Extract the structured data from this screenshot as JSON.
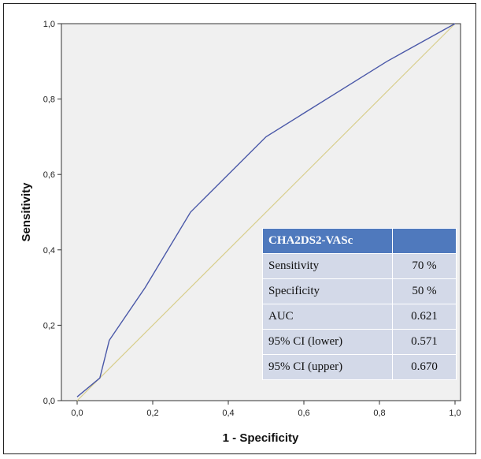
{
  "chart_data": {
    "type": "line",
    "xlabel": "1 - Specificity",
    "ylabel": "Sensitivity",
    "xlim": [
      0,
      1
    ],
    "ylim": [
      0,
      1
    ],
    "xticks": [
      "0,0",
      "0,2",
      "0,4",
      "0,6",
      "0,8",
      "1,0"
    ],
    "yticks": [
      "0,0",
      "0,2",
      "0,4",
      "0,6",
      "0,8",
      "1,0"
    ],
    "grid": false,
    "series": [
      {
        "color": "#4a58a8",
        "x": [
          0.0,
          0.06,
          0.085,
          0.18,
          0.3,
          0.5,
          0.82,
          1.0
        ],
        "y": [
          0.01,
          0.06,
          0.16,
          0.3,
          0.5,
          0.7,
          0.9,
          1.0
        ]
      },
      {
        "color": "#d8ce8c",
        "x": [
          0.0,
          1.0
        ],
        "y": [
          0.0,
          1.0
        ]
      }
    ]
  },
  "table": {
    "header": "CHA2DS2-VASc",
    "rows": [
      {
        "label": "Sensitivity",
        "value": "70 %"
      },
      {
        "label": "Specificity",
        "value": "50 %"
      },
      {
        "label": "AUC",
        "value": "0.621"
      },
      {
        "label": "95% CI (lower)",
        "value": "0.571"
      },
      {
        "label": "95% CI (upper)",
        "value": "0.670"
      }
    ]
  },
  "colors": {
    "plot_background": "#f0f0f0",
    "header_background": "#4f79bd",
    "row_background": "#d3d9e8"
  }
}
